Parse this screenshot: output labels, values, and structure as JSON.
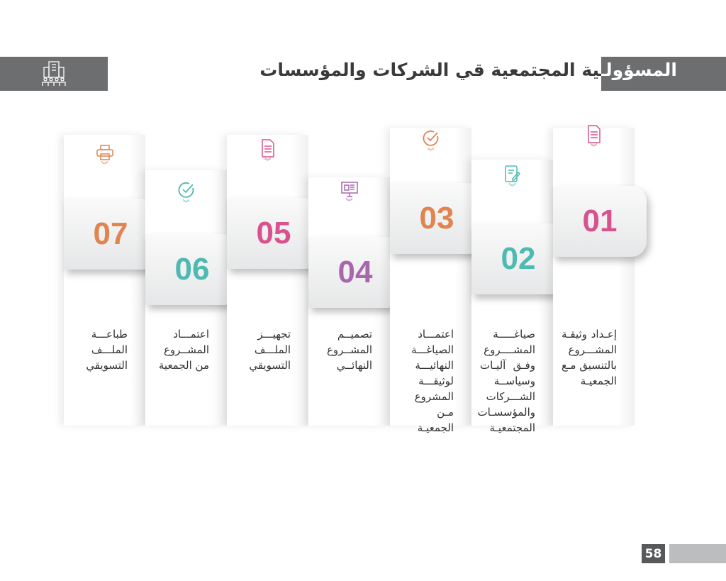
{
  "header": {
    "title": "المسؤولـية المجتمعية قي الشركات والمؤسسات",
    "icon": "building-people-icon"
  },
  "steps": [
    {
      "number": "01",
      "color": "#d8528f",
      "icon": "document-icon",
      "text": "إعـداد وثيقـة المشـــروع بالتنسيق مـع الجمعيـة"
    },
    {
      "number": "02",
      "color": "#4fb9b3",
      "icon": "edit-note-icon",
      "text": "صياغـــــة المشــــروع وفـق آليـات وسياســة الشـــركات والمؤسسـات المجتمعيـة"
    },
    {
      "number": "03",
      "color": "#e1844f",
      "icon": "check-circle-icon",
      "text": "اعتمـــاد الصياغـــة النهائيـــة لوثيقـــة المشروع مـن الجمعيـة"
    },
    {
      "number": "04",
      "color": "#a867ad",
      "icon": "monitor-design-icon",
      "text": "تصميــم المشــروع النهائــي"
    },
    {
      "number": "05",
      "color": "#d8528f",
      "icon": "document-icon",
      "text": "تجهيـــز الملـــف التسويقي"
    },
    {
      "number": "06",
      "color": "#4fb9b3",
      "icon": "check-circle-icon",
      "text": "اعتمـــاد المشــروع من الجمعية"
    },
    {
      "number": "07",
      "color": "#e1844f",
      "icon": "printer-icon",
      "text": "طباعـــة الملـــف التسويقي"
    }
  ],
  "footer": {
    "page_number": "58"
  }
}
